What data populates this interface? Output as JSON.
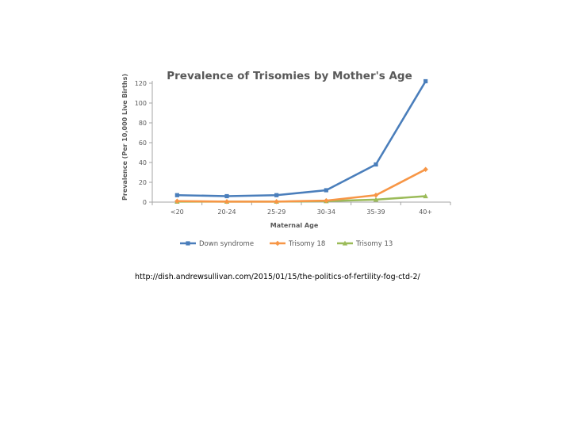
{
  "chart_data": {
    "type": "line",
    "title": "Prevalence of Trisomies by Mother's Age",
    "xlabel": "Maternal Age",
    "ylabel": "Prevalence (Per 10,000 Live Births)",
    "categories": [
      "<20",
      "20-24",
      "25-29",
      "30-34",
      "35-39",
      "40+"
    ],
    "ylim": [
      0,
      120
    ],
    "yticks": [
      0,
      20,
      40,
      60,
      80,
      100,
      120
    ],
    "grid": false,
    "legend": "bottom",
    "series": [
      {
        "name": "Down syndrome",
        "values": [
          7,
          6,
          7,
          12,
          38,
          122
        ],
        "color": "#4a7ebb",
        "marker": "square"
      },
      {
        "name": "Trisomy 18",
        "values": [
          1,
          0.5,
          0.5,
          1.5,
          7,
          33
        ],
        "color": "#f79646",
        "marker": "diamond"
      },
      {
        "name": "Trisomy 13",
        "values": [
          0.5,
          0.5,
          0.5,
          1,
          2.5,
          6
        ],
        "color": "#9bbb59",
        "marker": "triangle"
      }
    ]
  },
  "source_url": "http://dish.andrewsullivan.com/2015/01/15/the-politics-of-fertility-fog-ctd-2/"
}
